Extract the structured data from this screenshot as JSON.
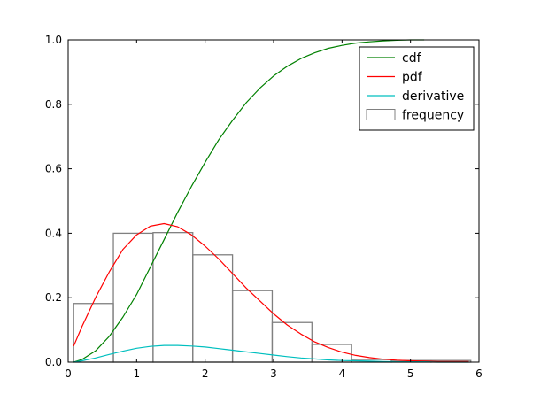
{
  "chart_data": {
    "type": "line",
    "xlim": [
      0,
      6
    ],
    "ylim": [
      0,
      1
    ],
    "x_ticks": [
      "0",
      "1",
      "2",
      "3",
      "4",
      "5",
      "6"
    ],
    "y_ticks": [
      "0.0",
      "0.2",
      "0.4",
      "0.6",
      "0.8",
      "1.0"
    ],
    "grid": false,
    "legend_position": "top-right",
    "series": [
      {
        "name": "cdf",
        "color": "#008000",
        "x": [
          0.08,
          0.2,
          0.4,
          0.6,
          0.8,
          1.0,
          1.2,
          1.4,
          1.6,
          1.8,
          2.0,
          2.2,
          2.4,
          2.6,
          2.8,
          3.0,
          3.2,
          3.4,
          3.6,
          3.8,
          4.0,
          4.2,
          4.4,
          4.6,
          4.8,
          5.0,
          5.2
        ],
        "y": [
          0.0,
          0.008,
          0.035,
          0.08,
          0.14,
          0.21,
          0.295,
          0.38,
          0.465,
          0.545,
          0.62,
          0.69,
          0.75,
          0.805,
          0.85,
          0.888,
          0.918,
          0.942,
          0.96,
          0.974,
          0.983,
          0.99,
          0.994,
          0.997,
          0.999,
          1.0,
          1.0
        ]
      },
      {
        "name": "pdf",
        "color": "#ff0000",
        "x": [
          0.08,
          0.2,
          0.4,
          0.6,
          0.8,
          1.0,
          1.2,
          1.4,
          1.6,
          1.8,
          2.0,
          2.2,
          2.4,
          2.6,
          2.8,
          3.0,
          3.2,
          3.4,
          3.6,
          3.8,
          4.0,
          4.2,
          4.4,
          4.6,
          4.8,
          5.0,
          5.2,
          5.4,
          5.6,
          5.85
        ],
        "y": [
          0.05,
          0.11,
          0.2,
          0.28,
          0.35,
          0.395,
          0.422,
          0.43,
          0.42,
          0.395,
          0.36,
          0.32,
          0.275,
          0.23,
          0.19,
          0.15,
          0.115,
          0.087,
          0.063,
          0.045,
          0.031,
          0.021,
          0.014,
          0.009,
          0.006,
          0.004,
          0.003,
          0.002,
          0.002,
          0.002
        ]
      },
      {
        "name": "derivative",
        "color": "#00bfbf",
        "x": [
          0.08,
          0.2,
          0.4,
          0.6,
          0.8,
          1.0,
          1.2,
          1.4,
          1.6,
          1.8,
          2.0,
          2.2,
          2.4,
          2.6,
          2.8,
          3.0,
          3.2,
          3.4,
          3.6,
          3.8,
          4.0,
          4.2,
          4.4,
          4.6,
          4.8,
          5.0,
          5.2,
          5.4,
          5.6,
          5.85
        ],
        "y": [
          0.0,
          0.004,
          0.013,
          0.024,
          0.034,
          0.043,
          0.049,
          0.052,
          0.052,
          0.05,
          0.047,
          0.042,
          0.037,
          0.032,
          0.027,
          0.022,
          0.017,
          0.013,
          0.01,
          0.007,
          0.005,
          0.004,
          0.003,
          0.002,
          0.001,
          0.001,
          0.001,
          0.0,
          0.0,
          0.0
        ]
      }
    ],
    "histogram": {
      "name": "frequency",
      "color": "#808080",
      "bin_edges": [
        0.08,
        0.66,
        1.24,
        1.82,
        2.4,
        2.98,
        3.56,
        4.14,
        4.72,
        5.3,
        5.88
      ],
      "values": [
        0.182,
        0.4,
        0.402,
        0.333,
        0.222,
        0.123,
        0.055,
        0.008,
        0.005,
        0.005
      ]
    }
  }
}
